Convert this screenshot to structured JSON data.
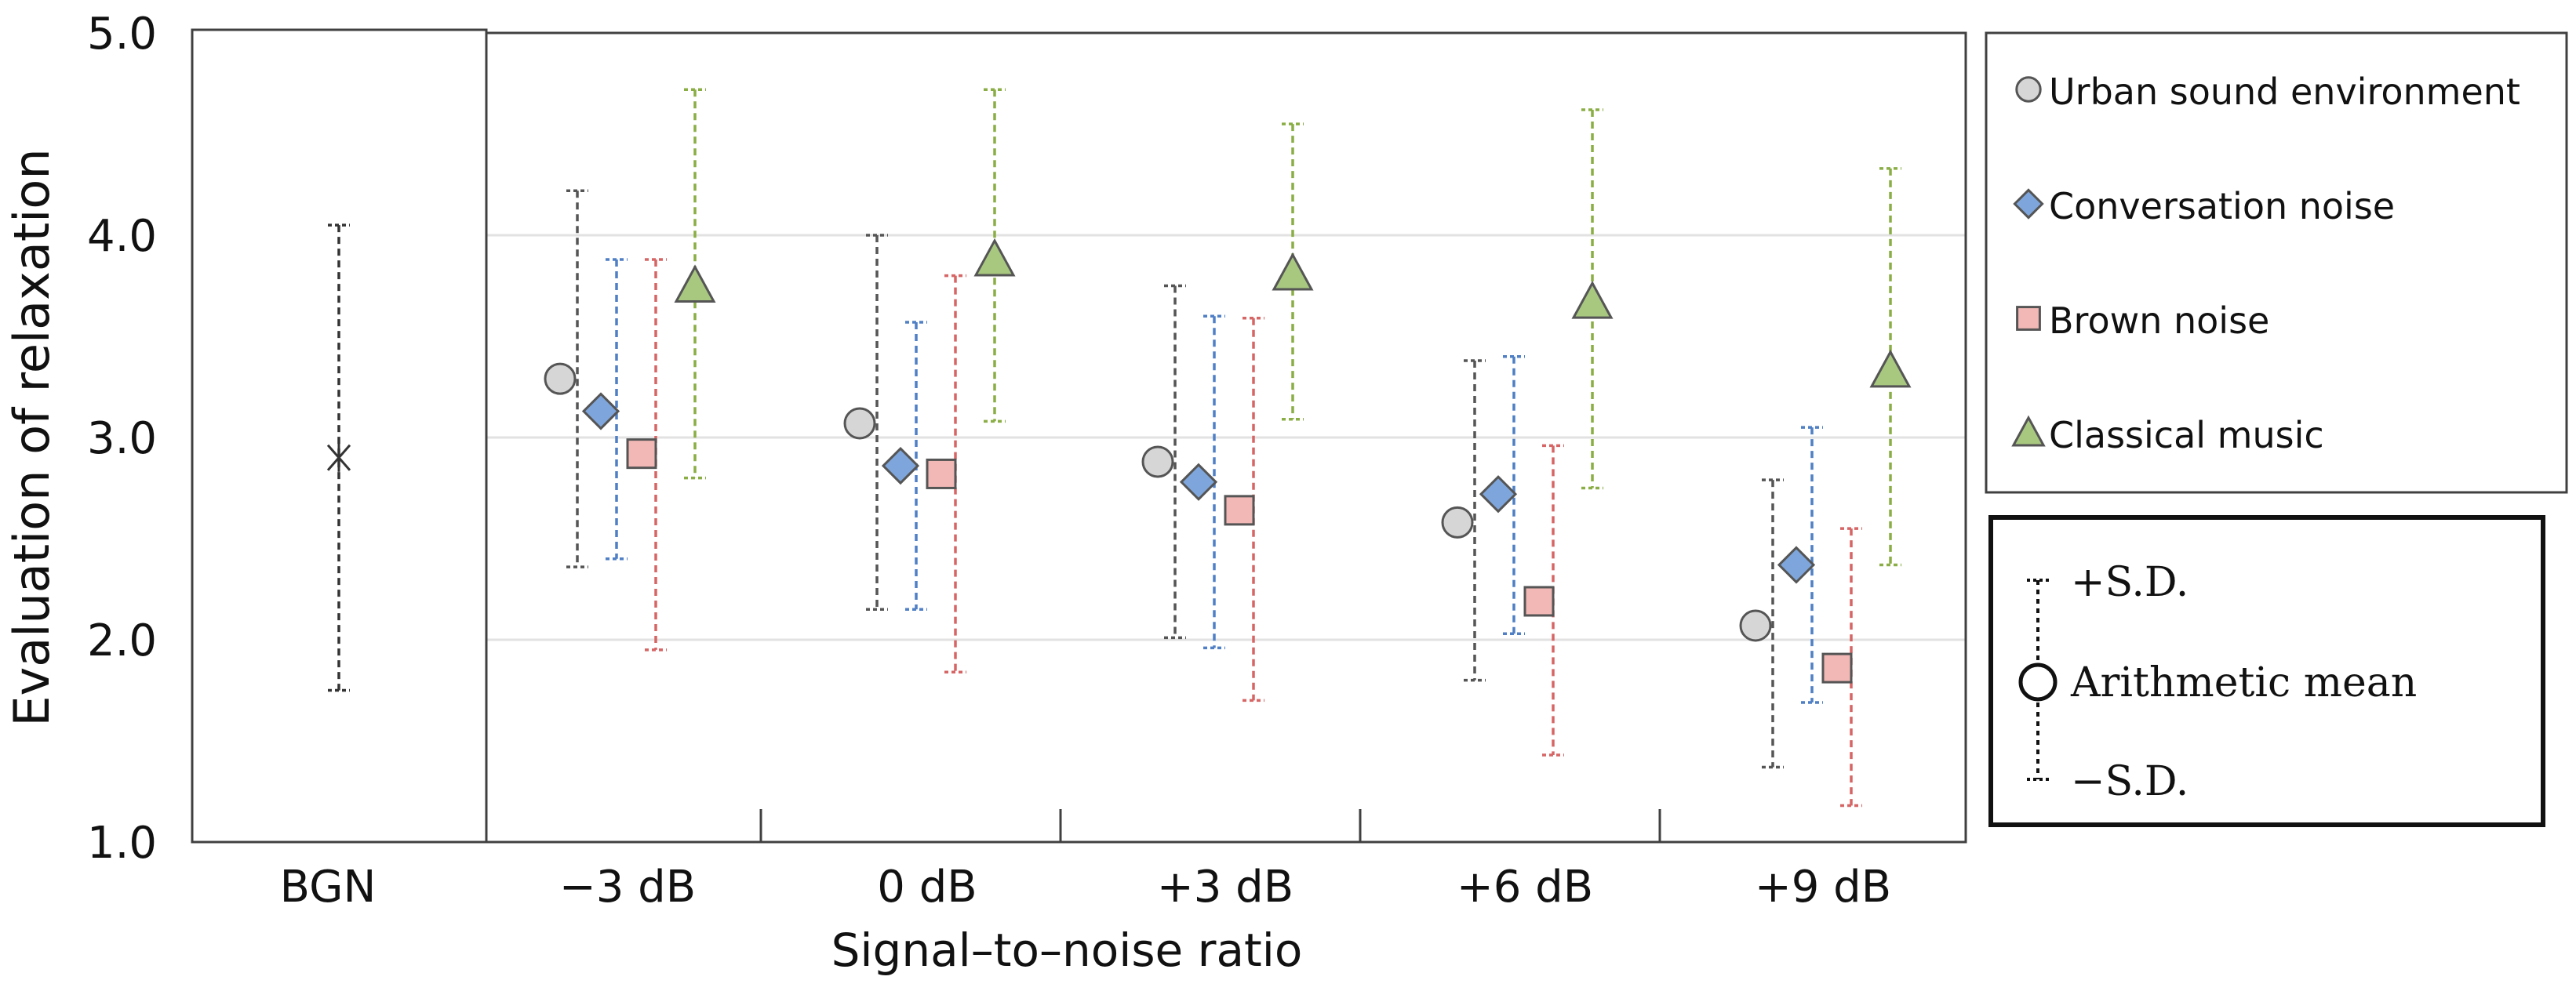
{
  "chart_data": {
    "type": "scatter",
    "title": "",
    "xlabel": "Signal–to–noise ratio",
    "ylabel": "Evaluation of relaxation",
    "ylim": [
      1.0,
      5.0
    ],
    "yticks": [
      "1.0",
      "2.0",
      "3.0",
      "4.0",
      "5.0"
    ],
    "ytick_values": [
      1.0,
      2.0,
      3.0,
      4.0,
      5.0
    ],
    "grid": true,
    "categories": [
      "−3 dB",
      "0 dB",
      "+3 dB",
      "+6 dB",
      "+9 dB"
    ],
    "baseline": {
      "label": "BGN",
      "mean": 2.9,
      "sd_high": 4.05,
      "sd_low": 1.75
    },
    "series": [
      {
        "name": "Urban sound environment",
        "marker": "circle",
        "fill": "#d6d6d6",
        "bar_color": "#555555",
        "means": [
          3.29,
          3.07,
          2.88,
          2.58,
          2.07
        ],
        "sd_high": [
          4.22,
          4.0,
          3.75,
          3.38,
          2.79
        ],
        "sd_low": [
          2.36,
          2.15,
          2.01,
          1.8,
          1.37
        ]
      },
      {
        "name": "Conversation noise",
        "marker": "diamond",
        "fill": "#7ea6dc",
        "bar_color": "#4f7fc4",
        "means": [
          3.13,
          2.86,
          2.78,
          2.72,
          2.37
        ],
        "sd_high": [
          3.88,
          3.57,
          3.6,
          3.4,
          3.05
        ],
        "sd_low": [
          2.4,
          2.15,
          1.96,
          2.03,
          1.69
        ]
      },
      {
        "name": "Brown noise",
        "marker": "square",
        "fill": "#f2b8b5",
        "bar_color": "#d66565",
        "means": [
          2.92,
          2.82,
          2.64,
          2.19,
          1.86
        ],
        "sd_high": [
          3.88,
          3.8,
          3.59,
          2.96,
          2.55
        ],
        "sd_low": [
          1.95,
          1.84,
          1.7,
          1.43,
          1.18
        ]
      },
      {
        "name": "Classical music",
        "marker": "triangle",
        "fill": "#a8c880",
        "bar_color": "#8aae45",
        "means": [
          3.75,
          3.88,
          3.81,
          3.67,
          3.33
        ],
        "sd_high": [
          4.72,
          4.72,
          4.55,
          4.62,
          4.33
        ],
        "sd_low": [
          2.8,
          3.08,
          3.09,
          2.75,
          2.37
        ]
      }
    ],
    "legend_position": "right",
    "key": {
      "plus": "+S.D.",
      "mean": "Arithmetic mean",
      "minus": "−S.D."
    }
  }
}
